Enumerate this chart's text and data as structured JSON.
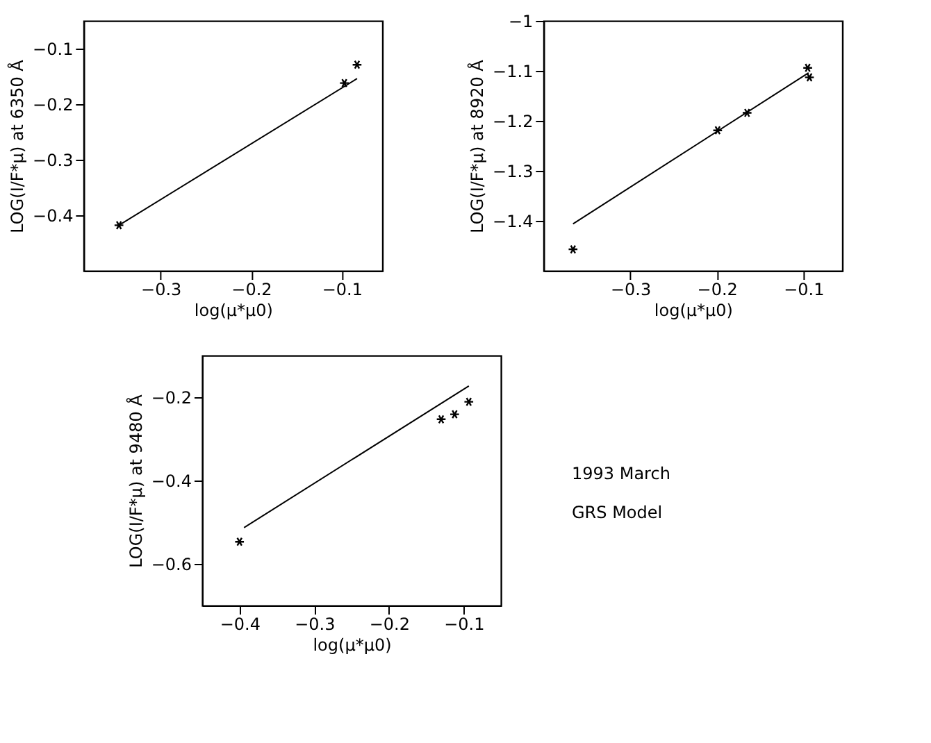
{
  "chart_data": [
    {
      "type": "scatter",
      "xlabel": "log(μ*μ0)",
      "ylabel": "LOG(I/F*μ) at 6350 Å",
      "xlim": [
        -0.385,
        -0.055
      ],
      "xticks": [
        -0.3,
        -0.2,
        -0.1
      ],
      "ylim": [
        -0.5,
        -0.05
      ],
      "yticks": [
        -0.4,
        -0.3,
        -0.2,
        -0.1
      ],
      "grid": false,
      "legend": false,
      "marker": "cross",
      "series": [
        {
          "type": "scatter",
          "color": "#000000",
          "x": [
            -0.346,
            -0.097,
            -0.083
          ],
          "values": [
            -0.418,
            -0.162,
            -0.129
          ]
        },
        {
          "type": "line",
          "color": "#000000",
          "marker": "none",
          "x": [
            -0.346,
            -0.083
          ],
          "values": [
            -0.418,
            -0.154
          ]
        }
      ]
    },
    {
      "type": "scatter",
      "xlabel": "log(μ*μ0)",
      "ylabel": "LOG(I/F*μ) at 8920 Å",
      "xlim": [
        -0.4,
        -0.055
      ],
      "xticks": [
        -0.3,
        -0.2,
        -0.1
      ],
      "ylim": [
        -1.5,
        -1
      ],
      "yticks": [
        -1.4,
        -1.3,
        -1.2,
        -1.1,
        -1
      ],
      "grid": false,
      "legend": false,
      "marker": "cross",
      "series": [
        {
          "type": "scatter",
          "color": "#000000",
          "x": [
            -0.366,
            -0.199,
            -0.165,
            -0.095,
            -0.093
          ],
          "values": [
            -1.457,
            -1.219,
            -1.184,
            -1.094,
            -1.113
          ]
        },
        {
          "type": "line",
          "color": "#000000",
          "marker": "none",
          "x": [
            -0.366,
            -0.094
          ],
          "values": [
            -1.406,
            -1.104
          ]
        }
      ]
    },
    {
      "type": "scatter",
      "xlabel": "log(μ*μ0)",
      "ylabel": "LOG(I/F*μ) at 9480 Å",
      "xlim": [
        -0.45,
        -0.05
      ],
      "xticks": [
        -0.4,
        -0.3,
        -0.2,
        -0.1
      ],
      "ylim": [
        -0.7,
        -0.1
      ],
      "yticks": [
        -0.6,
        -0.4,
        -0.2
      ],
      "grid": false,
      "legend": false,
      "marker": "cross",
      "annotations": [
        "1993 March",
        "GRS Model"
      ],
      "series": [
        {
          "type": "scatter",
          "color": "#000000",
          "x": [
            -0.4,
            -0.13,
            -0.112,
            -0.093
          ],
          "values": [
            -0.547,
            -0.253,
            -0.241,
            -0.211
          ]
        },
        {
          "type": "line",
          "color": "#000000",
          "marker": "none",
          "x": [
            -0.394,
            -0.093
          ],
          "values": [
            -0.513,
            -0.173
          ]
        }
      ]
    }
  ]
}
